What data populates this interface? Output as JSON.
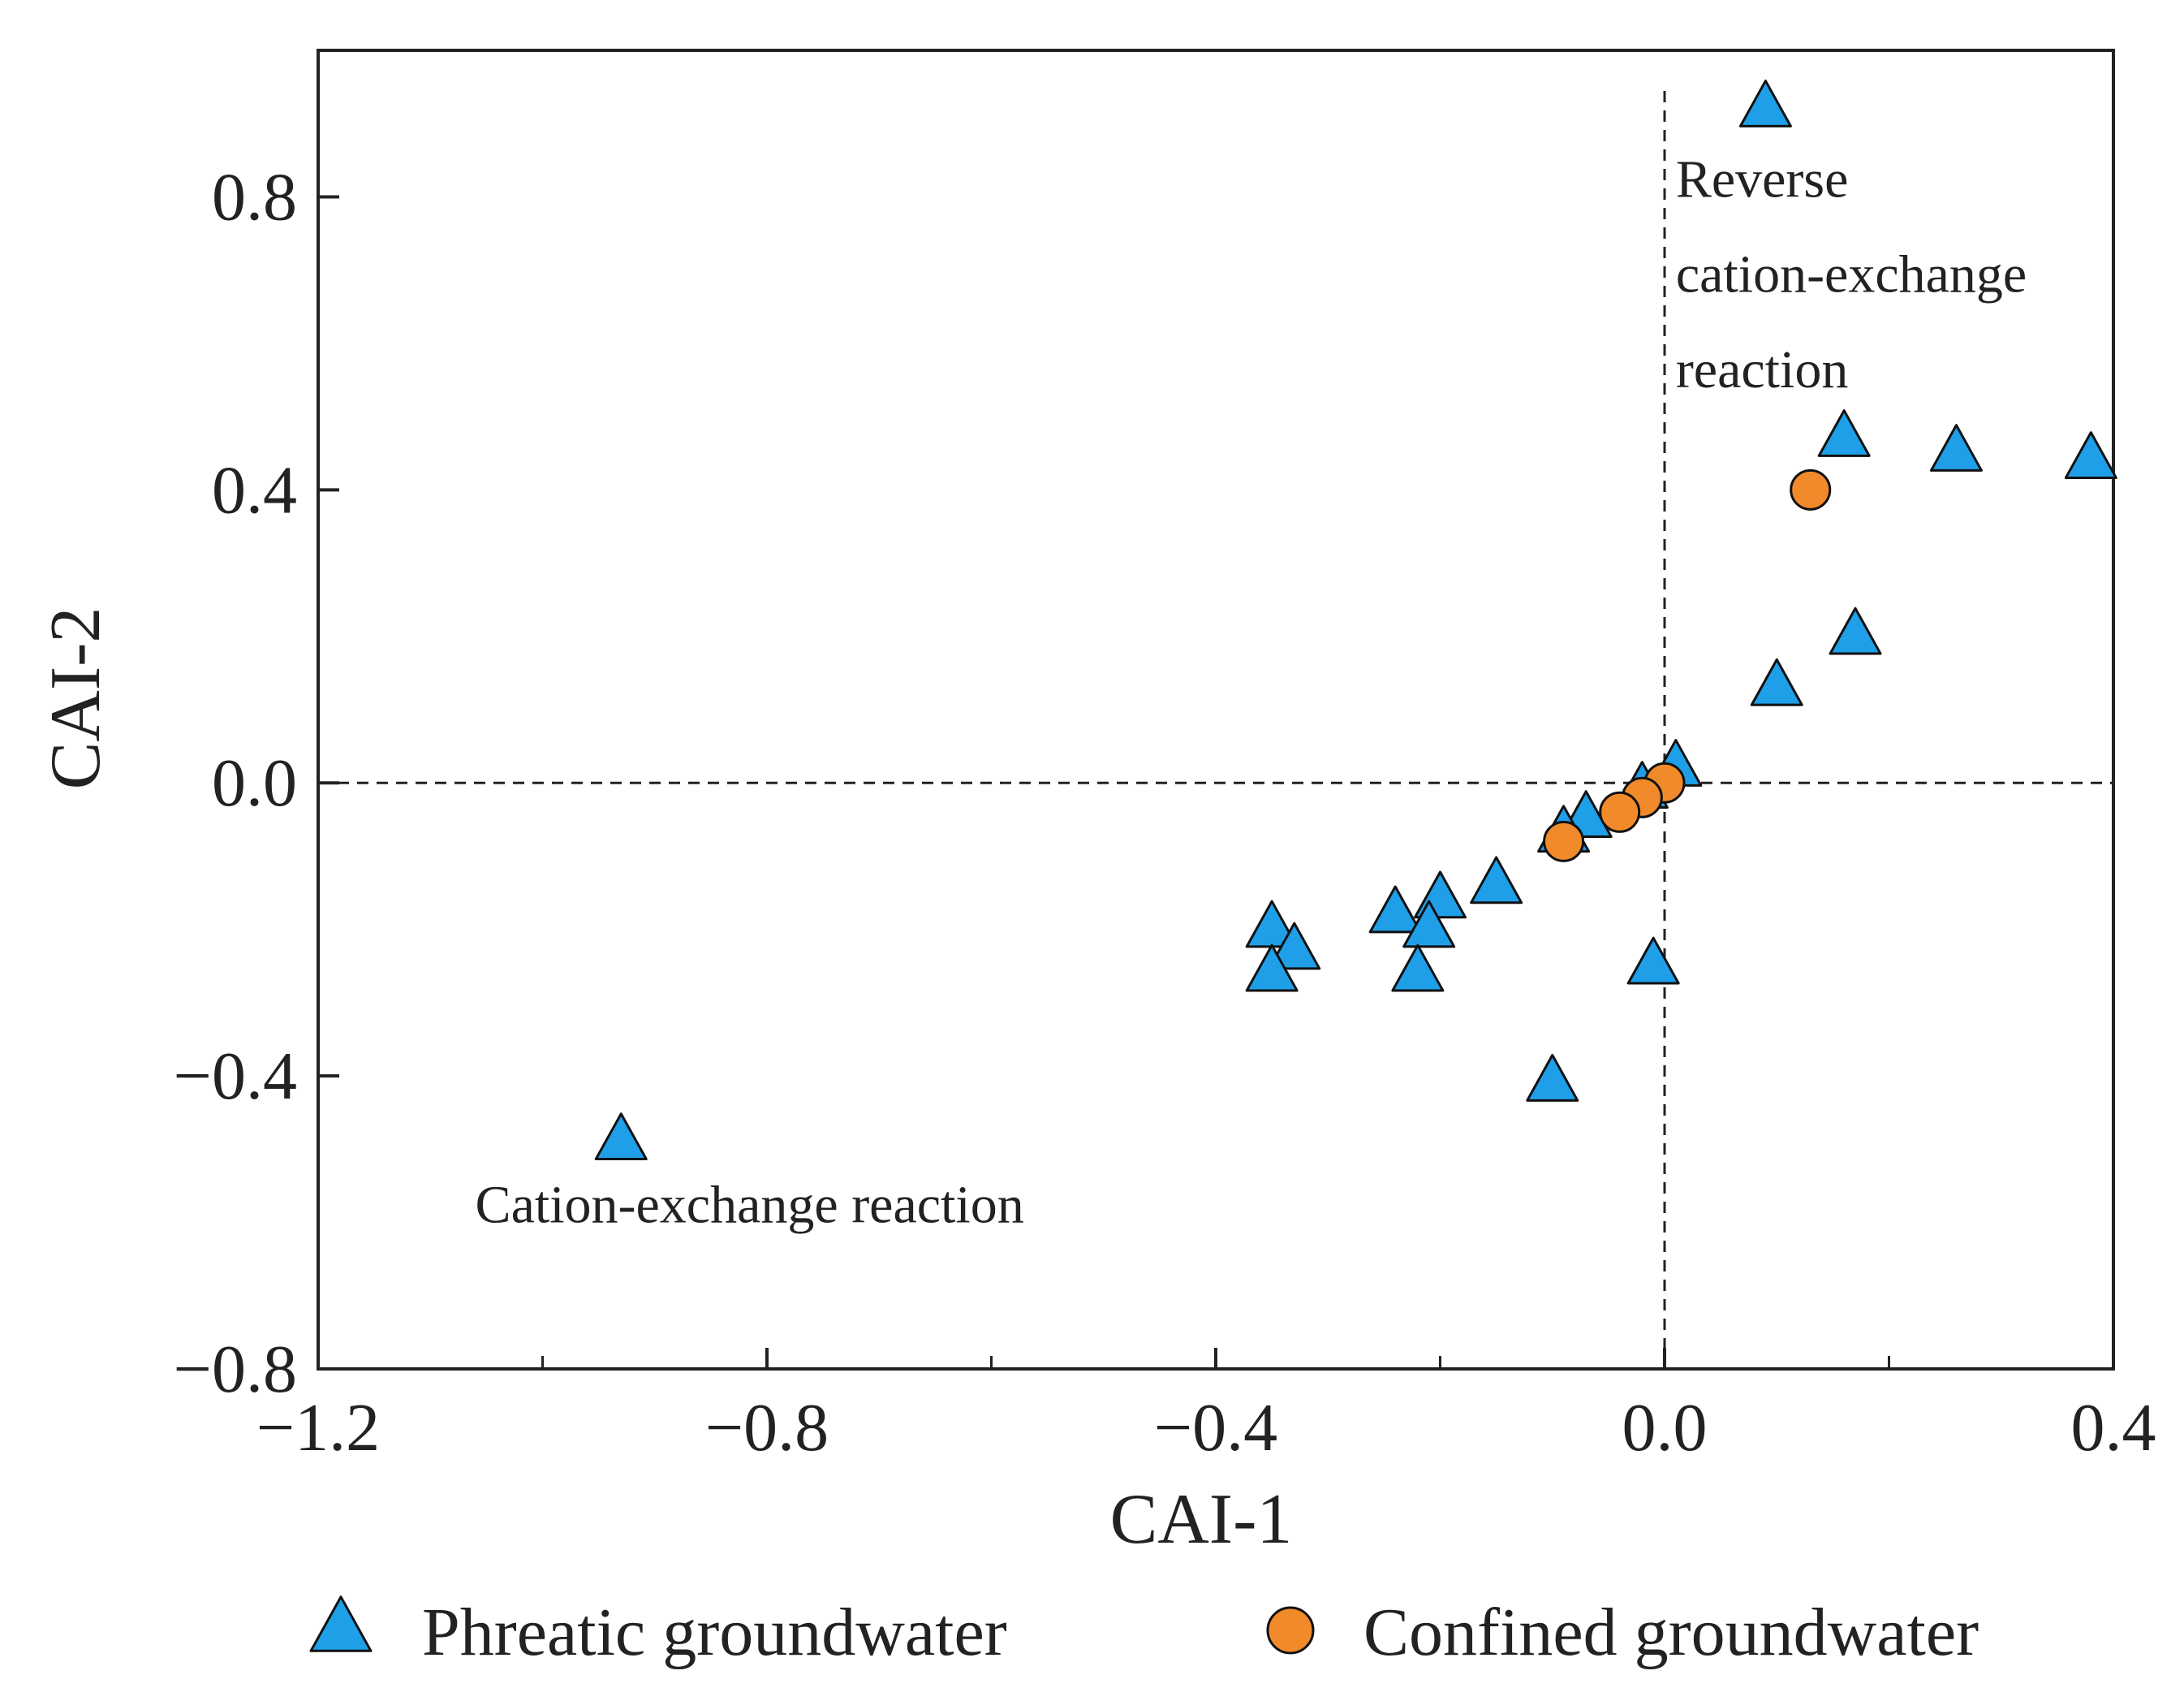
{
  "chart_data": {
    "type": "scatter",
    "title": "",
    "xlabel": "CAI-1",
    "ylabel": "CAI-2",
    "xlim": [
      -1.2,
      0.4
    ],
    "ylim": [
      -0.8,
      1.0
    ],
    "xticks": [
      -1.2,
      -0.8,
      -0.4,
      0.0,
      0.4
    ],
    "xtick_labels": [
      "−1.2",
      "−0.8",
      "−0.4",
      "0.0",
      "0.4"
    ],
    "yticks": [
      -0.8,
      -0.4,
      0.0,
      0.4,
      0.8
    ],
    "ytick_labels": [
      "−0.8",
      "−0.4",
      "0.0",
      "0.4",
      "0.8"
    ],
    "x_minor_ticks": [
      -1.0,
      -0.6,
      -0.2,
      0.2
    ],
    "grid": false,
    "legend_position": "bottom",
    "reference_lines": {
      "x": 0.0,
      "y": 0.0,
      "style": "dashed"
    },
    "annotations": [
      {
        "text": "Reverse",
        "x": 0.01,
        "y": 0.8
      },
      {
        "text": "cation-exchange",
        "x": 0.01,
        "y": 0.67
      },
      {
        "text": "reaction",
        "x": 0.01,
        "y": 0.54
      },
      {
        "text": "Cation-exchange reaction",
        "x": -1.06,
        "y": -0.6
      }
    ],
    "series": [
      {
        "name": "Phreatic groundwater",
        "marker": "triangle",
        "color": "#1E9FE8",
        "points": [
          {
            "x": 0.09,
            "y": 0.92
          },
          {
            "x": 0.16,
            "y": 0.47
          },
          {
            "x": 0.26,
            "y": 0.45
          },
          {
            "x": 0.38,
            "y": 0.44
          },
          {
            "x": 0.17,
            "y": 0.2
          },
          {
            "x": 0.1,
            "y": 0.13
          },
          {
            "x": 0.01,
            "y": 0.02
          },
          {
            "x": -0.02,
            "y": -0.01
          },
          {
            "x": -0.07,
            "y": -0.05
          },
          {
            "x": -0.09,
            "y": -0.07
          },
          {
            "x": -0.15,
            "y": -0.14
          },
          {
            "x": -0.2,
            "y": -0.16
          },
          {
            "x": -0.24,
            "y": -0.18
          },
          {
            "x": -0.21,
            "y": -0.2
          },
          {
            "x": -0.35,
            "y": -0.2
          },
          {
            "x": -0.33,
            "y": -0.23
          },
          {
            "x": -0.35,
            "y": -0.26
          },
          {
            "x": -0.22,
            "y": -0.26
          },
          {
            "x": -0.01,
            "y": -0.25
          },
          {
            "x": -0.1,
            "y": -0.41
          },
          {
            "x": -0.93,
            "y": -0.49
          }
        ]
      },
      {
        "name": "Confined groundwater",
        "marker": "circle",
        "color": "#F08A2B",
        "points": [
          {
            "x": 0.13,
            "y": 0.4
          },
          {
            "x": 0.0,
            "y": 0.0
          },
          {
            "x": -0.02,
            "y": -0.02
          },
          {
            "x": -0.04,
            "y": -0.04
          },
          {
            "x": -0.09,
            "y": -0.08
          }
        ]
      }
    ]
  }
}
